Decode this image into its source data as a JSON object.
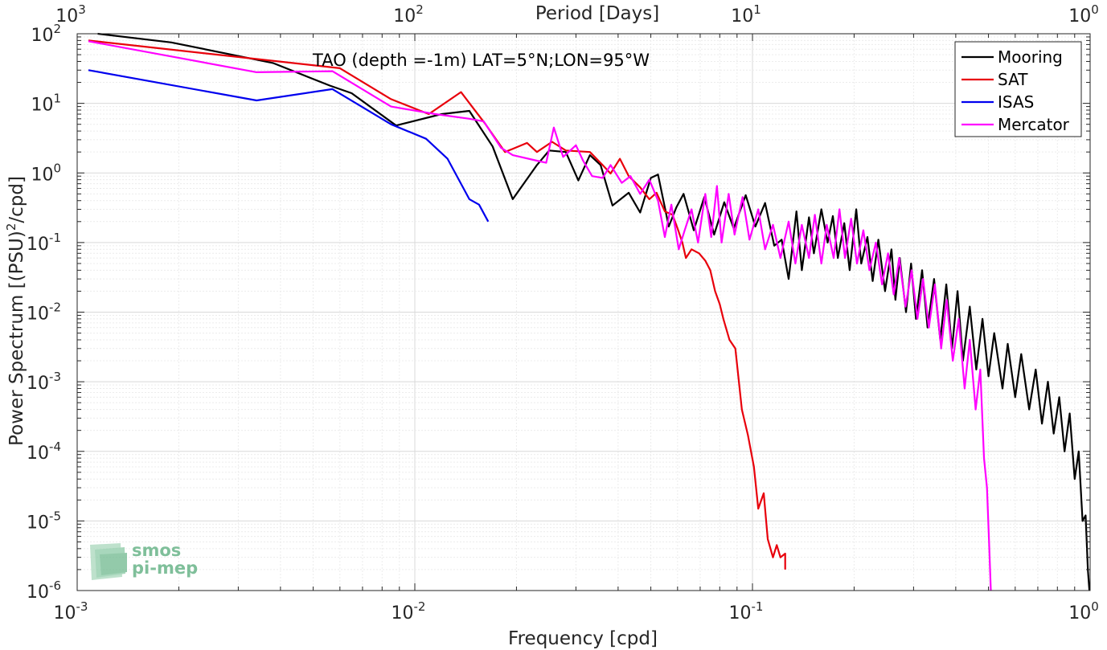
{
  "chart_data": {
    "type": "line",
    "title": "TAO (depth =-1m) LAT=5°N;LON=95°W",
    "xlabel": "Frequency [cpd]",
    "x2label": "Period [Days]",
    "ylabel": "Power Spectrum [(PSU)",
    "ylabel_exp": "2",
    "ylabel_suffix": "/cpd]",
    "x_scale": "log",
    "y_scale": "log",
    "xlim": [
      0.001,
      1
    ],
    "ylim": [
      1e-06,
      100
    ],
    "x_ticks": [
      {
        "base": "10",
        "exp": "-3"
      },
      {
        "base": "10",
        "exp": "-2"
      },
      {
        "base": "10",
        "exp": "-1"
      },
      {
        "base": "10",
        "exp": "0"
      }
    ],
    "x2_ticks": [
      {
        "base": "10",
        "exp": "3"
      },
      {
        "base": "10",
        "exp": "2"
      },
      {
        "base": "10",
        "exp": "1"
      },
      {
        "base": "10",
        "exp": "0"
      }
    ],
    "y_ticks": [
      {
        "base": "10",
        "exp": "-6"
      },
      {
        "base": "10",
        "exp": "-5"
      },
      {
        "base": "10",
        "exp": "-4"
      },
      {
        "base": "10",
        "exp": "-3"
      },
      {
        "base": "10",
        "exp": "-2"
      },
      {
        "base": "10",
        "exp": "-1"
      },
      {
        "base": "10",
        "exp": "0"
      },
      {
        "base": "10",
        "exp": "1"
      },
      {
        "base": "10",
        "exp": "2"
      }
    ],
    "grid": true,
    "legend_position": "top-right",
    "series": [
      {
        "name": "Mooring",
        "color": "#000000",
        "points": [
          [
            0.00115,
            100
          ],
          [
            0.0019,
            75
          ],
          [
            0.0038,
            38
          ],
          [
            0.0056,
            18
          ],
          [
            0.0065,
            14
          ],
          [
            0.0088,
            4.8
          ],
          [
            0.012,
            7.0
          ],
          [
            0.0145,
            7.8
          ],
          [
            0.017,
            2.4
          ],
          [
            0.0195,
            0.42
          ],
          [
            0.023,
            1.3
          ],
          [
            0.025,
            2.1
          ],
          [
            0.028,
            2.0
          ],
          [
            0.0305,
            0.78
          ],
          [
            0.033,
            1.8
          ],
          [
            0.0355,
            1.3
          ],
          [
            0.0385,
            0.34
          ],
          [
            0.043,
            0.52
          ],
          [
            0.0465,
            0.27
          ],
          [
            0.05,
            0.85
          ],
          [
            0.0525,
            0.95
          ],
          [
            0.0565,
            0.17
          ],
          [
            0.0595,
            0.32
          ],
          [
            0.0625,
            0.5
          ],
          [
            0.067,
            0.15
          ],
          [
            0.072,
            0.45
          ],
          [
            0.077,
            0.13
          ],
          [
            0.0825,
            0.38
          ],
          [
            0.088,
            0.16
          ],
          [
            0.0955,
            0.48
          ],
          [
            0.102,
            0.17
          ],
          [
            0.109,
            0.37
          ],
          [
            0.116,
            0.09
          ],
          [
            0.122,
            0.11
          ],
          [
            0.128,
            0.03
          ],
          [
            0.135,
            0.28
          ],
          [
            0.14,
            0.04
          ],
          [
            0.147,
            0.23
          ],
          [
            0.152,
            0.07
          ],
          [
            0.16,
            0.3
          ],
          [
            0.167,
            0.1
          ],
          [
            0.173,
            0.24
          ],
          [
            0.179,
            0.06
          ],
          [
            0.187,
            0.19
          ],
          [
            0.194,
            0.04
          ],
          [
            0.203,
            0.3
          ],
          [
            0.21,
            0.05
          ],
          [
            0.219,
            0.12
          ],
          [
            0.227,
            0.028
          ],
          [
            0.236,
            0.11
          ],
          [
            0.247,
            0.02
          ],
          [
            0.258,
            0.08
          ],
          [
            0.265,
            0.015
          ],
          [
            0.273,
            0.06
          ],
          [
            0.285,
            0.01
          ],
          [
            0.295,
            0.05
          ],
          [
            0.305,
            0.008
          ],
          [
            0.318,
            0.04
          ],
          [
            0.33,
            0.006
          ],
          [
            0.345,
            0.03
          ],
          [
            0.36,
            0.004
          ],
          [
            0.375,
            0.025
          ],
          [
            0.39,
            0.003
          ],
          [
            0.405,
            0.02
          ],
          [
            0.42,
            0.002
          ],
          [
            0.44,
            0.012
          ],
          [
            0.46,
            0.0015
          ],
          [
            0.48,
            0.008
          ],
          [
            0.5,
            0.0012
          ],
          [
            0.52,
            0.005
          ],
          [
            0.55,
            0.0008
          ],
          [
            0.57,
            0.0035
          ],
          [
            0.6,
            0.0006
          ],
          [
            0.625,
            0.0025
          ],
          [
            0.66,
            0.0004
          ],
          [
            0.69,
            0.0015
          ],
          [
            0.72,
            0.00025
          ],
          [
            0.75,
            0.001
          ],
          [
            0.78,
            0.00018
          ],
          [
            0.81,
            0.0006
          ],
          [
            0.84,
            0.0001
          ],
          [
            0.87,
            0.00035
          ],
          [
            0.9,
            4e-05
          ],
          [
            0.925,
            0.0001
          ],
          [
            0.95,
            1e-05
          ],
          [
            0.97,
            1.2e-05
          ],
          [
            0.985,
            2e-06
          ],
          [
            0.995,
            1e-06
          ]
        ]
      },
      {
        "name": "SAT",
        "color": "#e8000b",
        "points": [
          [
            0.00108,
            80
          ],
          [
            0.006,
            32
          ],
          [
            0.0085,
            11.5
          ],
          [
            0.011,
            7.0
          ],
          [
            0.0137,
            14.5
          ],
          [
            0.0162,
            5.0
          ],
          [
            0.0185,
            2.0
          ],
          [
            0.0215,
            2.7
          ],
          [
            0.023,
            2.0
          ],
          [
            0.0255,
            2.8
          ],
          [
            0.028,
            2.1
          ],
          [
            0.033,
            2.0
          ],
          [
            0.036,
            1.3
          ],
          [
            0.038,
            0.98
          ],
          [
            0.0405,
            1.6
          ],
          [
            0.043,
            0.9
          ],
          [
            0.0465,
            0.62
          ],
          [
            0.0495,
            0.42
          ],
          [
            0.052,
            0.52
          ],
          [
            0.055,
            0.28
          ],
          [
            0.058,
            0.25
          ],
          [
            0.06,
            0.16
          ],
          [
            0.062,
            0.1
          ],
          [
            0.0635,
            0.06
          ],
          [
            0.066,
            0.08
          ],
          [
            0.0695,
            0.07
          ],
          [
            0.0725,
            0.055
          ],
          [
            0.075,
            0.04
          ],
          [
            0.0775,
            0.02
          ],
          [
            0.08,
            0.013
          ],
          [
            0.082,
            0.008
          ],
          [
            0.0855,
            0.004
          ],
          [
            0.089,
            0.003
          ],
          [
            0.093,
            0.0004
          ],
          [
            0.097,
            0.00017
          ],
          [
            0.101,
            6e-05
          ],
          [
            0.104,
            1.5e-05
          ],
          [
            0.108,
            2.5e-05
          ],
          [
            0.111,
            5.5e-06
          ],
          [
            0.115,
            3e-06
          ],
          [
            0.118,
            4.5e-06
          ],
          [
            0.121,
            3e-06
          ],
          [
            0.125,
            3.4e-06
          ],
          [
            0.125,
            2e-06
          ]
        ]
      },
      {
        "name": "ISAS",
        "color": "#0000ee",
        "points": [
          [
            0.00108,
            30
          ],
          [
            0.0034,
            11
          ],
          [
            0.0057,
            16
          ],
          [
            0.0085,
            5.0
          ],
          [
            0.0108,
            3.1
          ],
          [
            0.0125,
            1.6
          ],
          [
            0.0145,
            0.42
          ],
          [
            0.0155,
            0.35
          ],
          [
            0.0165,
            0.2
          ]
        ]
      },
      {
        "name": "Mercator",
        "color": "#ff00ff",
        "points": [
          [
            0.00108,
            78
          ],
          [
            0.0034,
            28
          ],
          [
            0.0057,
            29
          ],
          [
            0.0085,
            9.0
          ],
          [
            0.0115,
            7.0
          ],
          [
            0.0145,
            6.0
          ],
          [
            0.016,
            5.5
          ],
          [
            0.018,
            2.3
          ],
          [
            0.0195,
            1.8
          ],
          [
            0.023,
            1.5
          ],
          [
            0.0245,
            1.4
          ],
          [
            0.0258,
            4.5
          ],
          [
            0.0275,
            1.7
          ],
          [
            0.03,
            2.5
          ],
          [
            0.0315,
            1.5
          ],
          [
            0.0335,
            0.9
          ],
          [
            0.036,
            0.85
          ],
          [
            0.038,
            1.3
          ],
          [
            0.041,
            0.72
          ],
          [
            0.0435,
            0.9
          ],
          [
            0.0465,
            0.5
          ],
          [
            0.0495,
            0.8
          ],
          [
            0.0525,
            0.4
          ],
          [
            0.055,
            0.12
          ],
          [
            0.0575,
            0.35
          ],
          [
            0.0605,
            0.08
          ],
          [
            0.063,
            0.15
          ],
          [
            0.066,
            0.3
          ],
          [
            0.069,
            0.1
          ],
          [
            0.0725,
            0.5
          ],
          [
            0.0755,
            0.12
          ],
          [
            0.0785,
            0.65
          ],
          [
            0.081,
            0.1
          ],
          [
            0.085,
            0.5
          ],
          [
            0.0885,
            0.13
          ],
          [
            0.0935,
            0.45
          ],
          [
            0.098,
            0.11
          ],
          [
            0.104,
            0.3
          ],
          [
            0.109,
            0.08
          ],
          [
            0.115,
            0.18
          ],
          [
            0.121,
            0.06
          ],
          [
            0.128,
            0.2
          ],
          [
            0.134,
            0.05
          ],
          [
            0.14,
            0.18
          ],
          [
            0.147,
            0.06
          ],
          [
            0.153,
            0.25
          ],
          [
            0.16,
            0.05
          ],
          [
            0.166,
            0.18
          ],
          [
            0.174,
            0.06
          ],
          [
            0.181,
            0.3
          ],
          [
            0.188,
            0.06
          ],
          [
            0.196,
            0.22
          ],
          [
            0.204,
            0.05
          ],
          [
            0.213,
            0.15
          ],
          [
            0.222,
            0.04
          ],
          [
            0.232,
            0.1
          ],
          [
            0.242,
            0.025
          ],
          [
            0.252,
            0.07
          ],
          [
            0.262,
            0.018
          ],
          [
            0.272,
            0.06
          ],
          [
            0.284,
            0.012
          ],
          [
            0.296,
            0.04
          ],
          [
            0.308,
            0.008
          ],
          [
            0.32,
            0.03
          ],
          [
            0.333,
            0.006
          ],
          [
            0.347,
            0.025
          ],
          [
            0.362,
            0.003
          ],
          [
            0.376,
            0.015
          ],
          [
            0.392,
            0.002
          ],
          [
            0.408,
            0.008
          ],
          [
            0.425,
            0.0008
          ],
          [
            0.44,
            0.004
          ],
          [
            0.458,
            0.0004
          ],
          [
            0.473,
            0.0015
          ],
          [
            0.485,
            8e-05
          ],
          [
            0.495,
            3e-05
          ],
          [
            0.502,
            5e-06
          ],
          [
            0.508,
            1e-06
          ]
        ]
      }
    ]
  },
  "logo": {
    "line1": "smos",
    "line2": "pi-mep"
  }
}
